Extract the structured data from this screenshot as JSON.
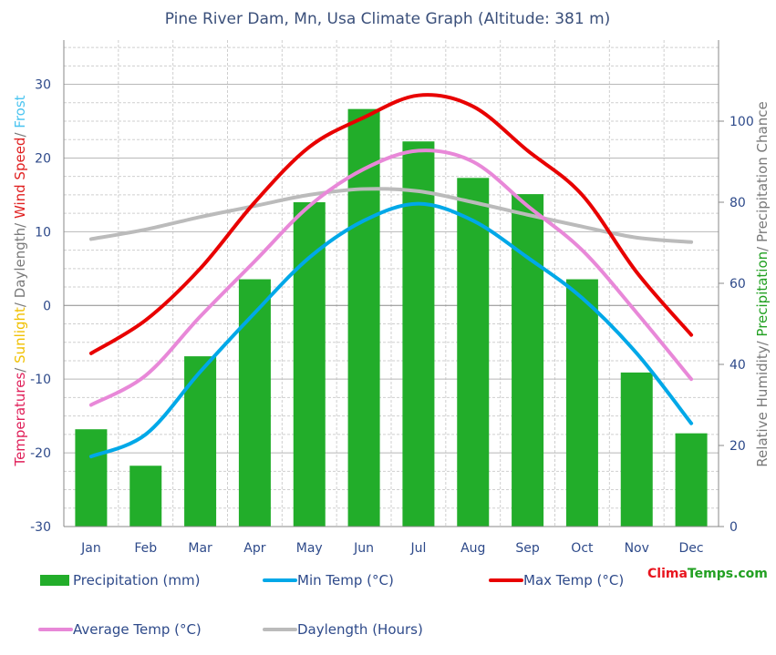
{
  "chart_data": {
    "type": "bar",
    "title": "Pine River Dam, Mn, Usa Climate Graph (Altitude: 381 m)",
    "categories": [
      "Jan",
      "Feb",
      "Mar",
      "Apr",
      "May",
      "Jun",
      "Jul",
      "Aug",
      "Sep",
      "Oct",
      "Nov",
      "Dec"
    ],
    "left_axis": {
      "ylim": [
        -30,
        36
      ],
      "ticks": [
        -30,
        -20,
        -10,
        0,
        10,
        20,
        30
      ],
      "label_parts": [
        {
          "text": "Temperatures",
          "color": "#e0205a"
        },
        {
          "text": "/ ",
          "color": "#7a7a7a"
        },
        {
          "text": "Sunlight",
          "color": "#f0c000"
        },
        {
          "text": "/ Daylength/ ",
          "color": "#7a7a7a"
        },
        {
          "text": "Wind Speed",
          "color": "#e02020"
        },
        {
          "text": "/ ",
          "color": "#7a7a7a"
        },
        {
          "text": "Frost",
          "color": "#4ac4f0"
        }
      ]
    },
    "right_axis": {
      "ylim": [
        0,
        120
      ],
      "ticks": [
        0,
        20,
        40,
        60,
        80,
        100
      ],
      "label_parts": [
        {
          "text": "Relative Humidity/ ",
          "color": "#7a7a7a"
        },
        {
          "text": "Precipitation",
          "color": "#22a022"
        },
        {
          "text": "/ Precipitation Chance",
          "color": "#7a7a7a"
        }
      ]
    },
    "series": [
      {
        "name": "Precipitation (mm)",
        "type": "bar",
        "axis": "right",
        "color": "#22ad2a",
        "values": [
          24,
          15,
          42,
          61,
          80,
          103,
          95,
          86,
          82,
          61,
          38,
          23
        ]
      },
      {
        "name": "Min Temp (°C)",
        "type": "line",
        "axis": "left",
        "color": "#00a8e8",
        "values": [
          -20.5,
          -17.5,
          -9,
          -1,
          6.5,
          11.5,
          13.8,
          11.5,
          6.5,
          1,
          -6.5,
          -16
        ]
      },
      {
        "name": "Max Temp (°C)",
        "type": "line",
        "axis": "left",
        "color": "#e80000",
        "values": [
          -6.5,
          -2,
          5,
          14,
          21.5,
          25.5,
          28.5,
          27,
          21,
          15,
          4.5,
          -4
        ]
      },
      {
        "name": "Average Temp (°C)",
        "type": "line",
        "axis": "left",
        "color": "#e888d8",
        "values": [
          -13.5,
          -9.5,
          -1.5,
          6,
          13.5,
          18.5,
          21,
          19.5,
          13.5,
          7.5,
          -1,
          -10
        ]
      },
      {
        "name": "Daylength (Hours)",
        "type": "line",
        "axis": "left",
        "color": "#bbbbbb",
        "values": [
          9,
          10.3,
          12,
          13.5,
          15,
          15.8,
          15.5,
          14,
          12.3,
          10.7,
          9.2,
          8.6
        ]
      }
    ],
    "grid": true,
    "legend_position": "bottom",
    "brand": {
      "part1": "Clima",
      "part2": "Temps",
      "part3": ".com",
      "color1": "#e8141e",
      "color2": "#22a022"
    }
  }
}
